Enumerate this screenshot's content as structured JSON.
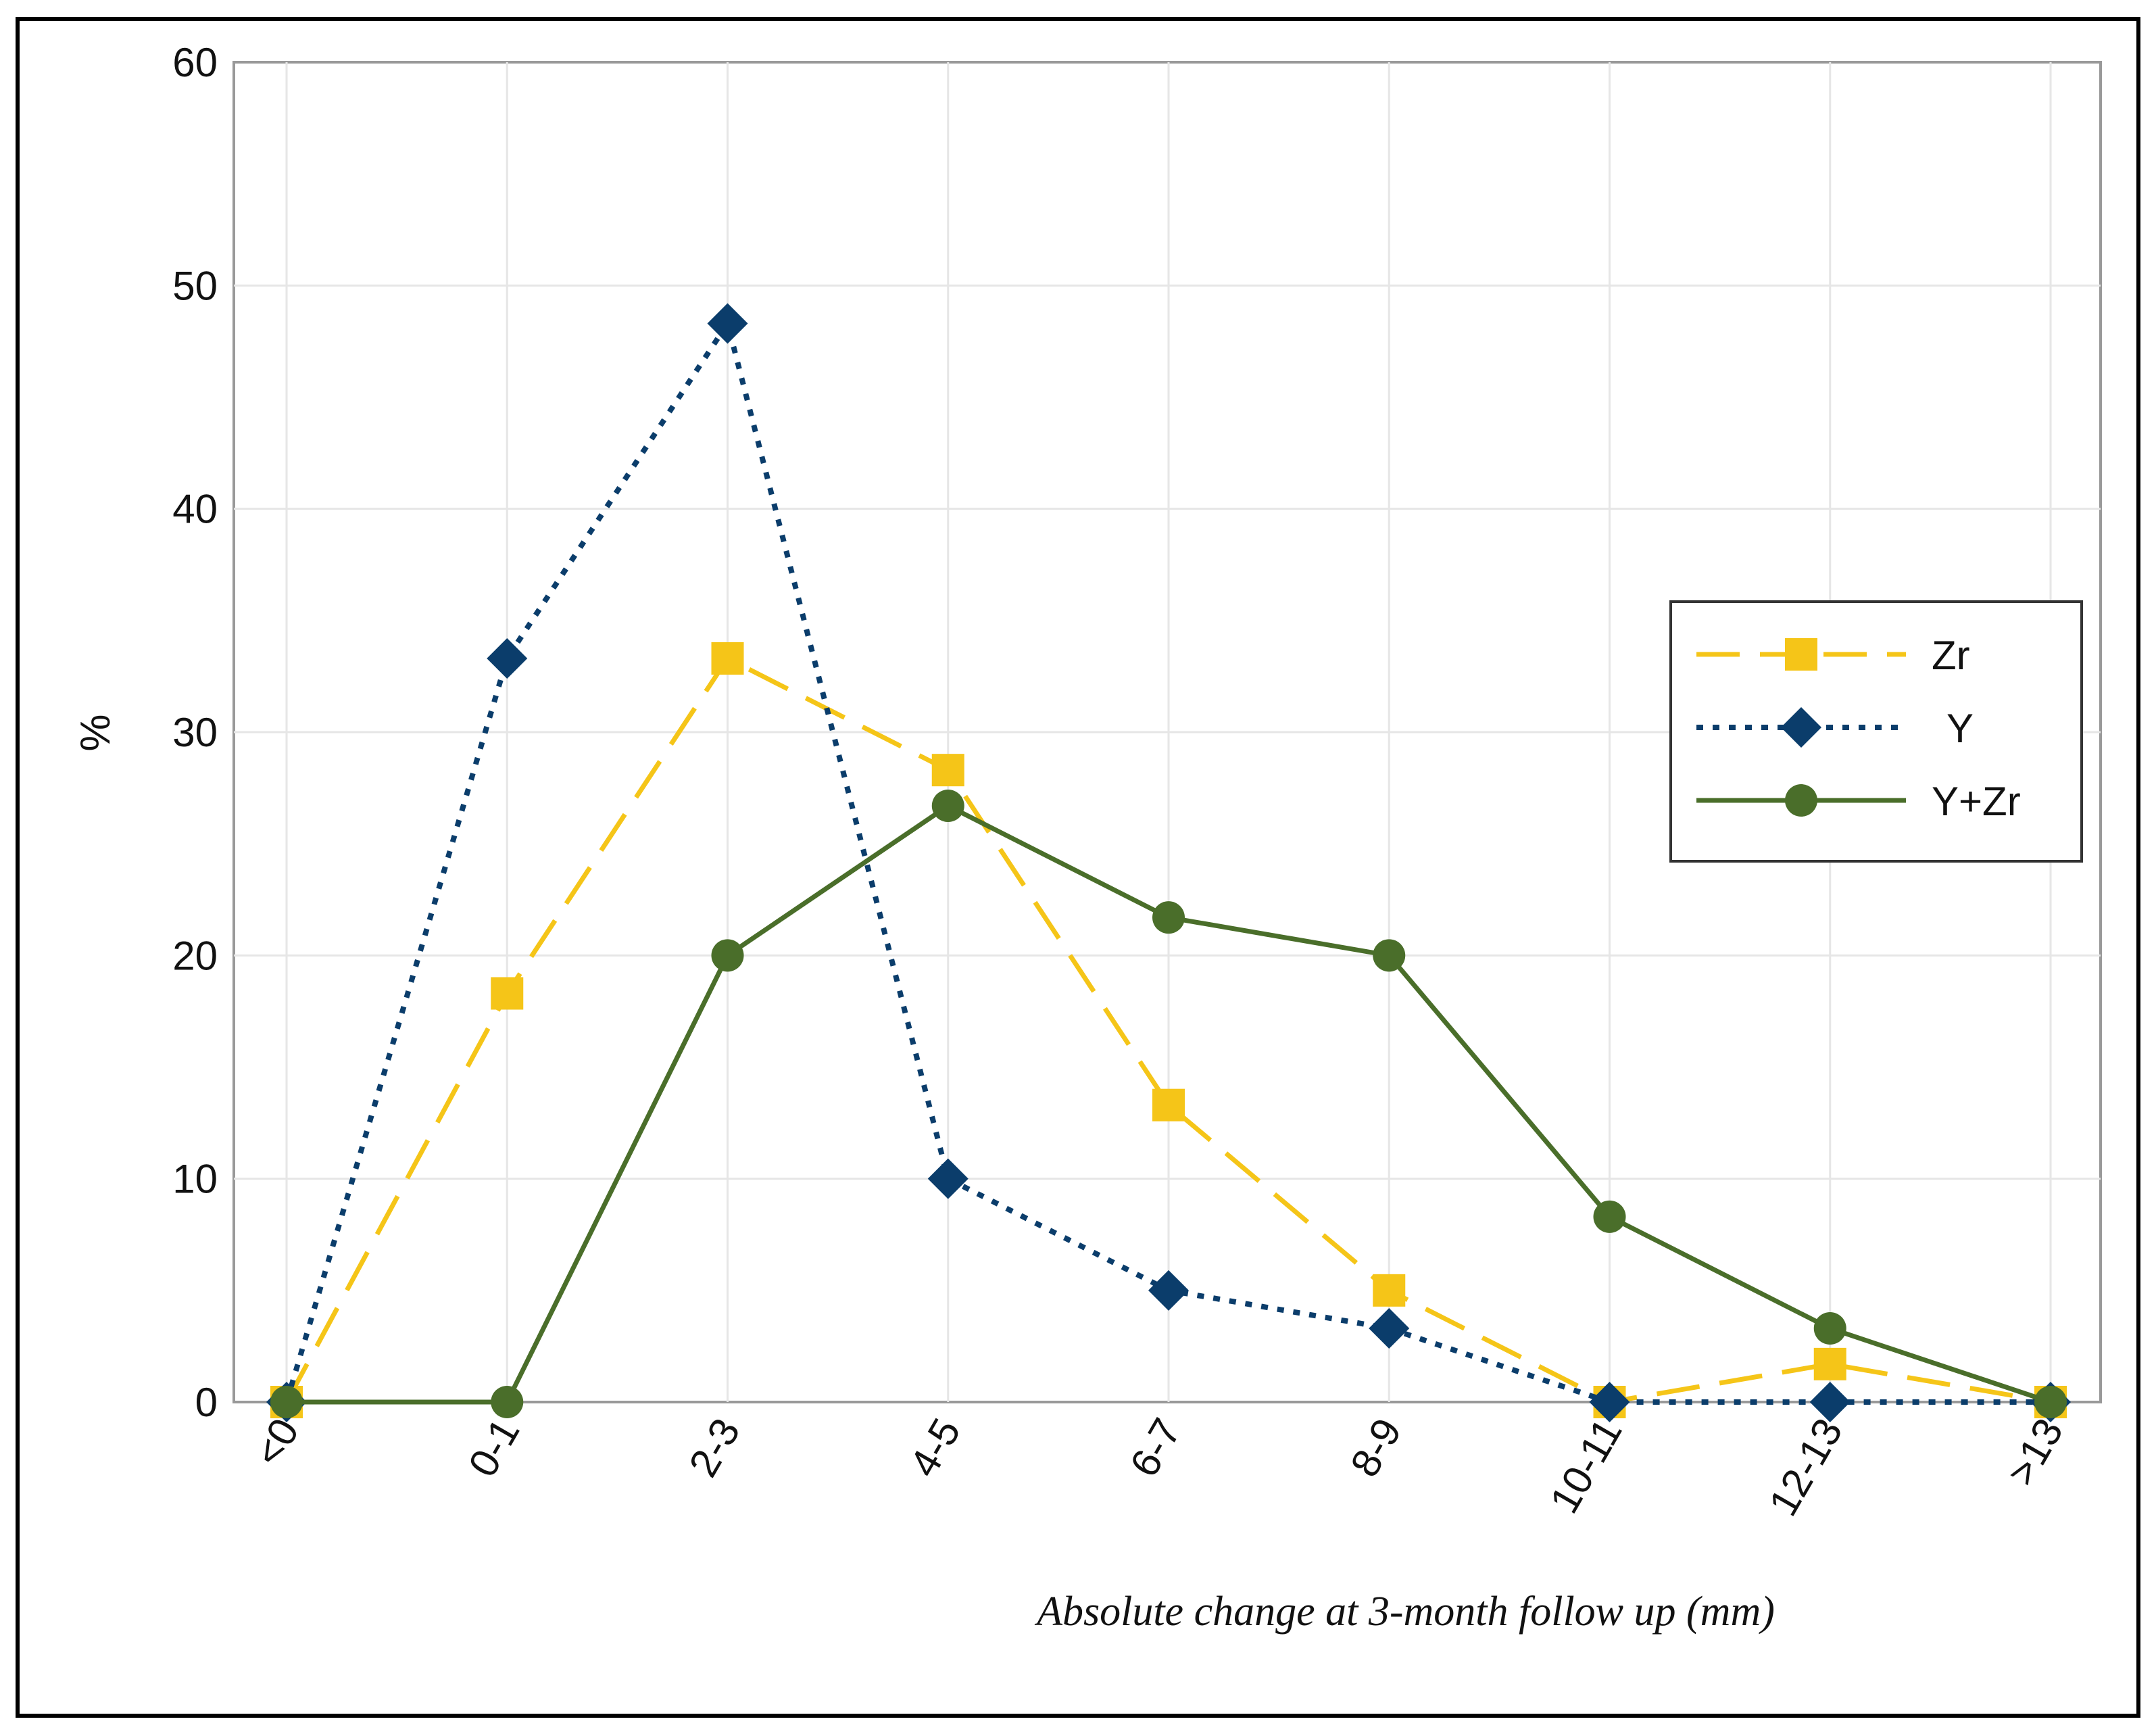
{
  "chart_data": {
    "type": "line",
    "title": "",
    "xlabel": "Absolute change at 3-month follow up (mm)",
    "ylabel": "%",
    "categories": [
      "<0",
      "0-1",
      "2-3",
      "4-5",
      "6-7",
      "8-9",
      "10-11",
      "12-13",
      ">13"
    ],
    "ylim": [
      0,
      60
    ],
    "yticks": [
      0,
      10,
      20,
      30,
      40,
      50,
      60
    ],
    "grid": true,
    "legend_position": "right",
    "series": [
      {
        "name": "Zr",
        "color": "#F5C518",
        "marker": "square",
        "line_style": "dashed",
        "values": [
          0,
          18.3,
          33.3,
          28.3,
          13.3,
          5.0,
          0,
          1.7,
          0
        ]
      },
      {
        "name": "Y",
        "color": "#0B3D6B",
        "marker": "diamond",
        "line_style": "dotted",
        "values": [
          0,
          33.3,
          48.3,
          10.0,
          5.0,
          3.3,
          0,
          0,
          0
        ]
      },
      {
        "name": "Y+Zr",
        "color": "#4A6E2A",
        "marker": "circle",
        "line_style": "solid",
        "values": [
          0,
          0,
          20.0,
          26.7,
          21.7,
          20.0,
          8.3,
          3.3,
          0
        ]
      }
    ]
  }
}
